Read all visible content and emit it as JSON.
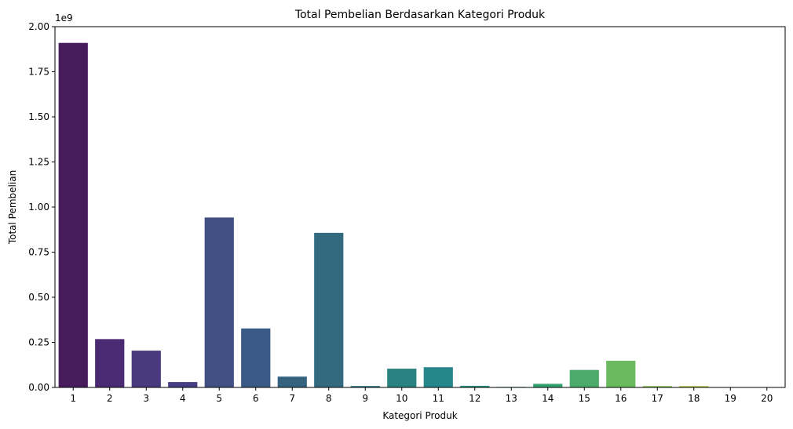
{
  "chart_data": {
    "type": "bar",
    "title": "Total Pembelian Berdasarkan Kategori Produk",
    "xlabel": "Kategori Produk",
    "ylabel": "Total Pembelian",
    "offset_text": "1e9",
    "categories": [
      "1",
      "2",
      "3",
      "4",
      "5",
      "6",
      "7",
      "8",
      "9",
      "10",
      "11",
      "12",
      "13",
      "14",
      "15",
      "16",
      "17",
      "18",
      "19",
      "20"
    ],
    "values": [
      1910000000,
      268000000,
      204000000,
      30000000,
      942000000,
      327000000,
      60000000,
      857000000,
      8000000,
      104000000,
      112000000,
      9000000,
      3000000,
      20000000,
      97000000,
      148000000,
      8000000,
      8000000,
      1000000,
      500000
    ],
    "colors": [
      "#481c5c",
      "#4a2a73",
      "#483a7d",
      "#453f81",
      "#424f83",
      "#3c5a86",
      "#34627f",
      "#346a80",
      "#2e7582",
      "#2b8381",
      "#26878a",
      "#259282",
      "#2a8f7a",
      "#35a070",
      "#4caa6a",
      "#6cba60",
      "#92c45c",
      "#b1cd50",
      "#c2d34a",
      "#d1d64a"
    ],
    "ylim": [
      0,
      2000000000
    ],
    "yticks": [
      {
        "value": 0,
        "label": "0.00"
      },
      {
        "value": 250000000,
        "label": "0.25"
      },
      {
        "value": 500000000,
        "label": "0.50"
      },
      {
        "value": 750000000,
        "label": "0.75"
      },
      {
        "value": 1000000000,
        "label": "1.00"
      },
      {
        "value": 1250000000,
        "label": "1.25"
      },
      {
        "value": 1500000000,
        "label": "1.50"
      },
      {
        "value": 1750000000,
        "label": "1.75"
      },
      {
        "value": 2000000000,
        "label": "2.00"
      }
    ],
    "grid": false,
    "legend": false
  }
}
